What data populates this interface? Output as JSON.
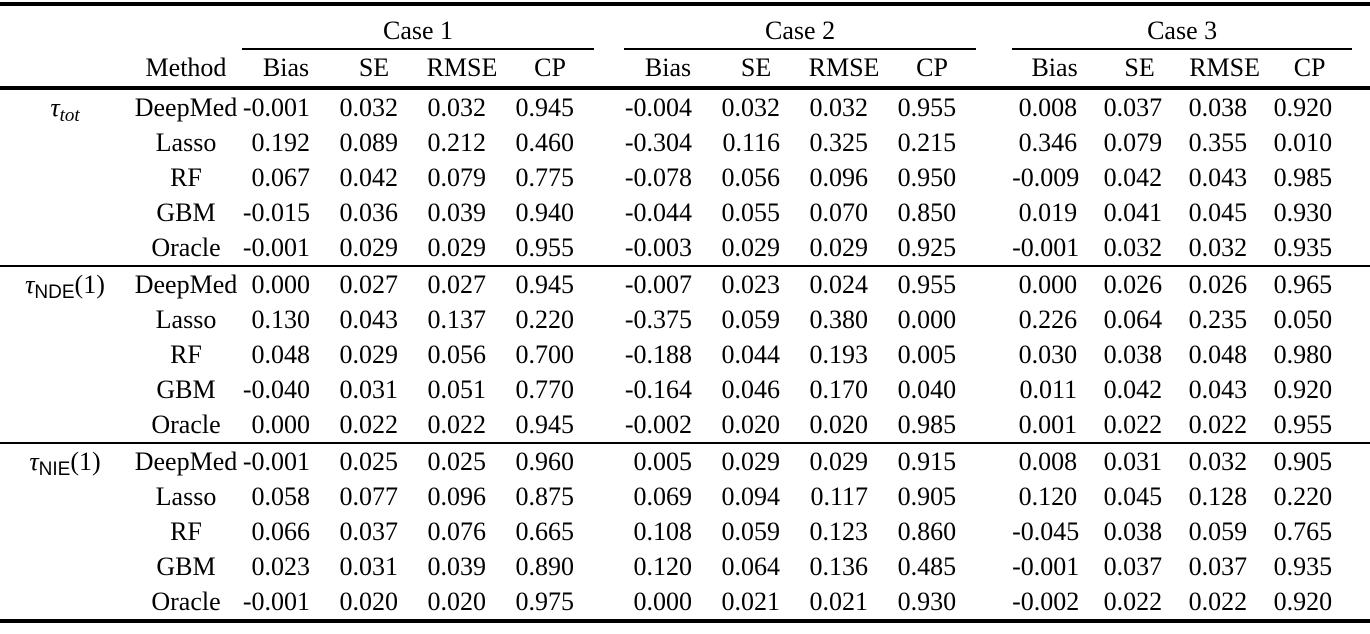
{
  "table": {
    "cases": [
      "Case 1",
      "Case 2",
      "Case 3"
    ],
    "method_header": "Method",
    "subcolumns": [
      "Bias",
      "SE",
      "RMSE",
      "CP"
    ],
    "groups": [
      {
        "label": {
          "symbol": "τ",
          "subscript": "tot",
          "sub_style": "italic",
          "suffix": ""
        },
        "rows": [
          {
            "method": "DeepMed",
            "case1": [
              "-0.001",
              "0.032",
              "0.032",
              "0.945"
            ],
            "case2": [
              "-0.004",
              "0.032",
              "0.032",
              "0.955"
            ],
            "case3": [
              "0.008",
              "0.037",
              "0.038",
              "0.920"
            ]
          },
          {
            "method": "Lasso",
            "case1": [
              "0.192",
              "0.089",
              "0.212",
              "0.460"
            ],
            "case2": [
              "-0.304",
              "0.116",
              "0.325",
              "0.215"
            ],
            "case3": [
              "0.346",
              "0.079",
              "0.355",
              "0.010"
            ]
          },
          {
            "method": "RF",
            "case1": [
              "0.067",
              "0.042",
              "0.079",
              "0.775"
            ],
            "case2": [
              "-0.078",
              "0.056",
              "0.096",
              "0.950"
            ],
            "case3": [
              "-0.009",
              "0.042",
              "0.043",
              "0.985"
            ]
          },
          {
            "method": "GBM",
            "case1": [
              "-0.015",
              "0.036",
              "0.039",
              "0.940"
            ],
            "case2": [
              "-0.044",
              "0.055",
              "0.070",
              "0.850"
            ],
            "case3": [
              "0.019",
              "0.041",
              "0.045",
              "0.930"
            ]
          },
          {
            "method": "Oracle",
            "case1": [
              "-0.001",
              "0.029",
              "0.029",
              "0.955"
            ],
            "case2": [
              "-0.003",
              "0.029",
              "0.029",
              "0.925"
            ],
            "case3": [
              "-0.001",
              "0.032",
              "0.032",
              "0.935"
            ]
          }
        ]
      },
      {
        "label": {
          "symbol": "τ",
          "subscript": "NDE",
          "sub_style": "sans",
          "suffix": "(1)"
        },
        "rows": [
          {
            "method": "DeepMed",
            "case1": [
              "0.000",
              "0.027",
              "0.027",
              "0.945"
            ],
            "case2": [
              "-0.007",
              "0.023",
              "0.024",
              "0.955"
            ],
            "case3": [
              "0.000",
              "0.026",
              "0.026",
              "0.965"
            ]
          },
          {
            "method": "Lasso",
            "case1": [
              "0.130",
              "0.043",
              "0.137",
              "0.220"
            ],
            "case2": [
              "-0.375",
              "0.059",
              "0.380",
              "0.000"
            ],
            "case3": [
              "0.226",
              "0.064",
              "0.235",
              "0.050"
            ]
          },
          {
            "method": "RF",
            "case1": [
              "0.048",
              "0.029",
              "0.056",
              "0.700"
            ],
            "case2": [
              "-0.188",
              "0.044",
              "0.193",
              "0.005"
            ],
            "case3": [
              "0.030",
              "0.038",
              "0.048",
              "0.980"
            ]
          },
          {
            "method": "GBM",
            "case1": [
              "-0.040",
              "0.031",
              "0.051",
              "0.770"
            ],
            "case2": [
              "-0.164",
              "0.046",
              "0.170",
              "0.040"
            ],
            "case3": [
              "0.011",
              "0.042",
              "0.043",
              "0.920"
            ]
          },
          {
            "method": "Oracle",
            "case1": [
              "0.000",
              "0.022",
              "0.022",
              "0.945"
            ],
            "case2": [
              "-0.002",
              "0.020",
              "0.020",
              "0.985"
            ],
            "case3": [
              "0.001",
              "0.022",
              "0.022",
              "0.955"
            ]
          }
        ]
      },
      {
        "label": {
          "symbol": "τ",
          "subscript": "NIE",
          "sub_style": "sans",
          "suffix": "(1)"
        },
        "rows": [
          {
            "method": "DeepMed",
            "case1": [
              "-0.001",
              "0.025",
              "0.025",
              "0.960"
            ],
            "case2": [
              "0.005",
              "0.029",
              "0.029",
              "0.915"
            ],
            "case3": [
              "0.008",
              "0.031",
              "0.032",
              "0.905"
            ]
          },
          {
            "method": "Lasso",
            "case1": [
              "0.058",
              "0.077",
              "0.096",
              "0.875"
            ],
            "case2": [
              "0.069",
              "0.094",
              "0.117",
              "0.905"
            ],
            "case3": [
              "0.120",
              "0.045",
              "0.128",
              "0.220"
            ]
          },
          {
            "method": "RF",
            "case1": [
              "0.066",
              "0.037",
              "0.076",
              "0.665"
            ],
            "case2": [
              "0.108",
              "0.059",
              "0.123",
              "0.860"
            ],
            "case3": [
              "-0.045",
              "0.038",
              "0.059",
              "0.765"
            ]
          },
          {
            "method": "GBM",
            "case1": [
              "0.023",
              "0.031",
              "0.039",
              "0.890"
            ],
            "case2": [
              "0.120",
              "0.064",
              "0.136",
              "0.485"
            ],
            "case3": [
              "-0.001",
              "0.037",
              "0.037",
              "0.935"
            ]
          },
          {
            "method": "Oracle",
            "case1": [
              "-0.001",
              "0.020",
              "0.020",
              "0.975"
            ],
            "case2": [
              "0.000",
              "0.021",
              "0.021",
              "0.930"
            ],
            "case3": [
              "-0.002",
              "0.022",
              "0.022",
              "0.920"
            ]
          }
        ]
      }
    ]
  }
}
